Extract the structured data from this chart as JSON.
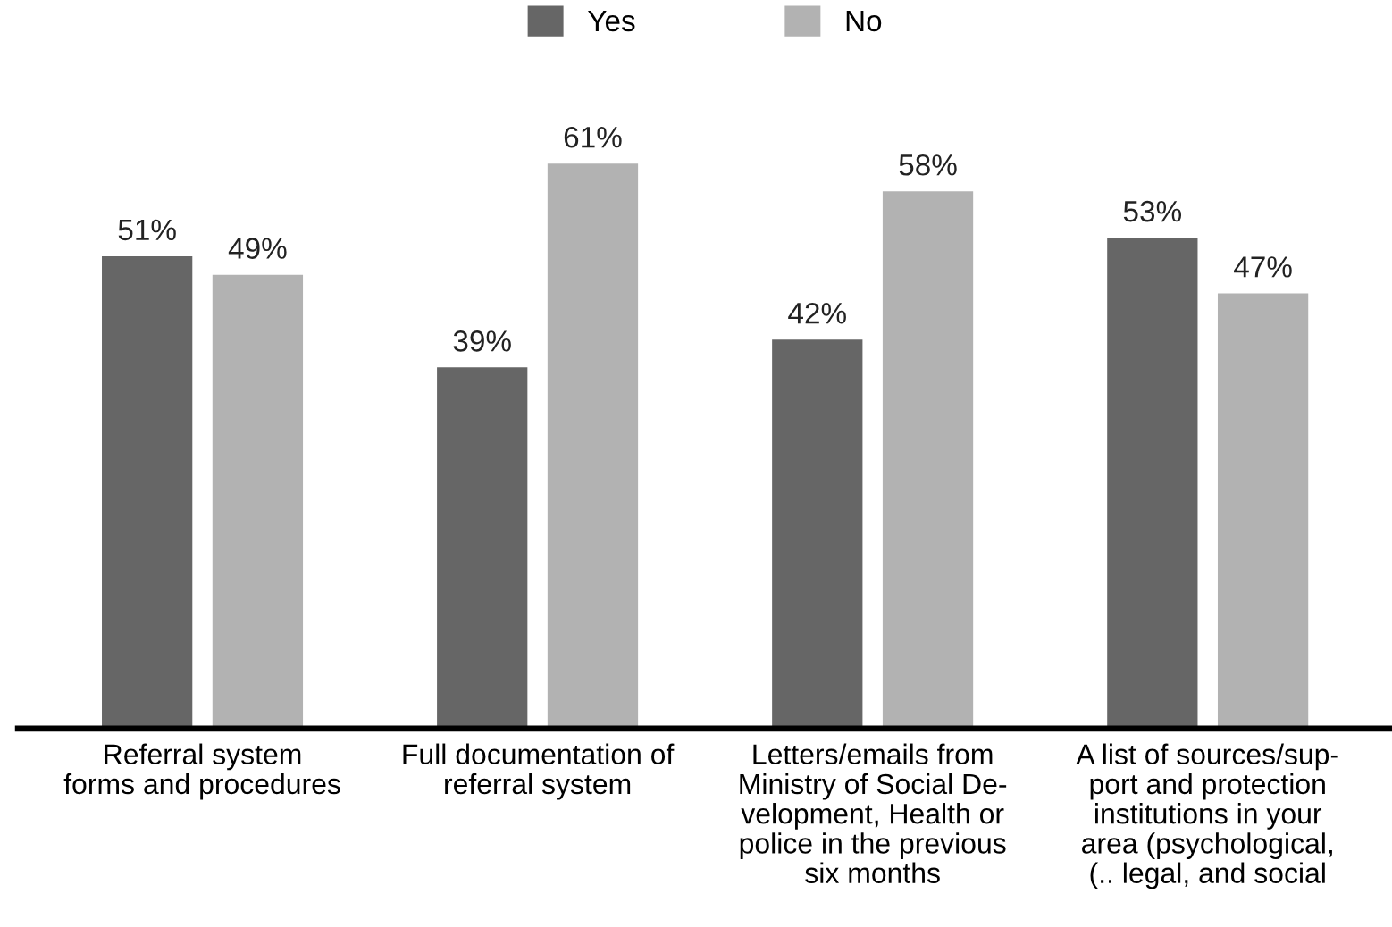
{
  "chart_data": {
    "type": "bar",
    "categories": [
      "Referral system\nforms and procedures",
      "Full documentation of\nreferral system",
      "Letters/emails from\nMinistry of Social De-\nvelopment, Health or\npolice in the previous\nsix months",
      "A list of sources/sup-\nport and protection\ninstitutions in your\narea (psychological,\n(.. legal, and social"
    ],
    "series": [
      {
        "name": "Yes",
        "color": "#666666",
        "values": [
          51,
          39,
          42,
          53
        ],
        "value_labels": [
          "51%",
          "39%",
          "42%",
          "53%"
        ]
      },
      {
        "name": "No",
        "color": "#b2b2b2",
        "values": [
          49,
          61,
          58,
          47
        ],
        "value_labels": [
          "49%",
          "61%",
          "58%",
          "47%"
        ]
      }
    ],
    "legend": "top",
    "grid": false
  }
}
